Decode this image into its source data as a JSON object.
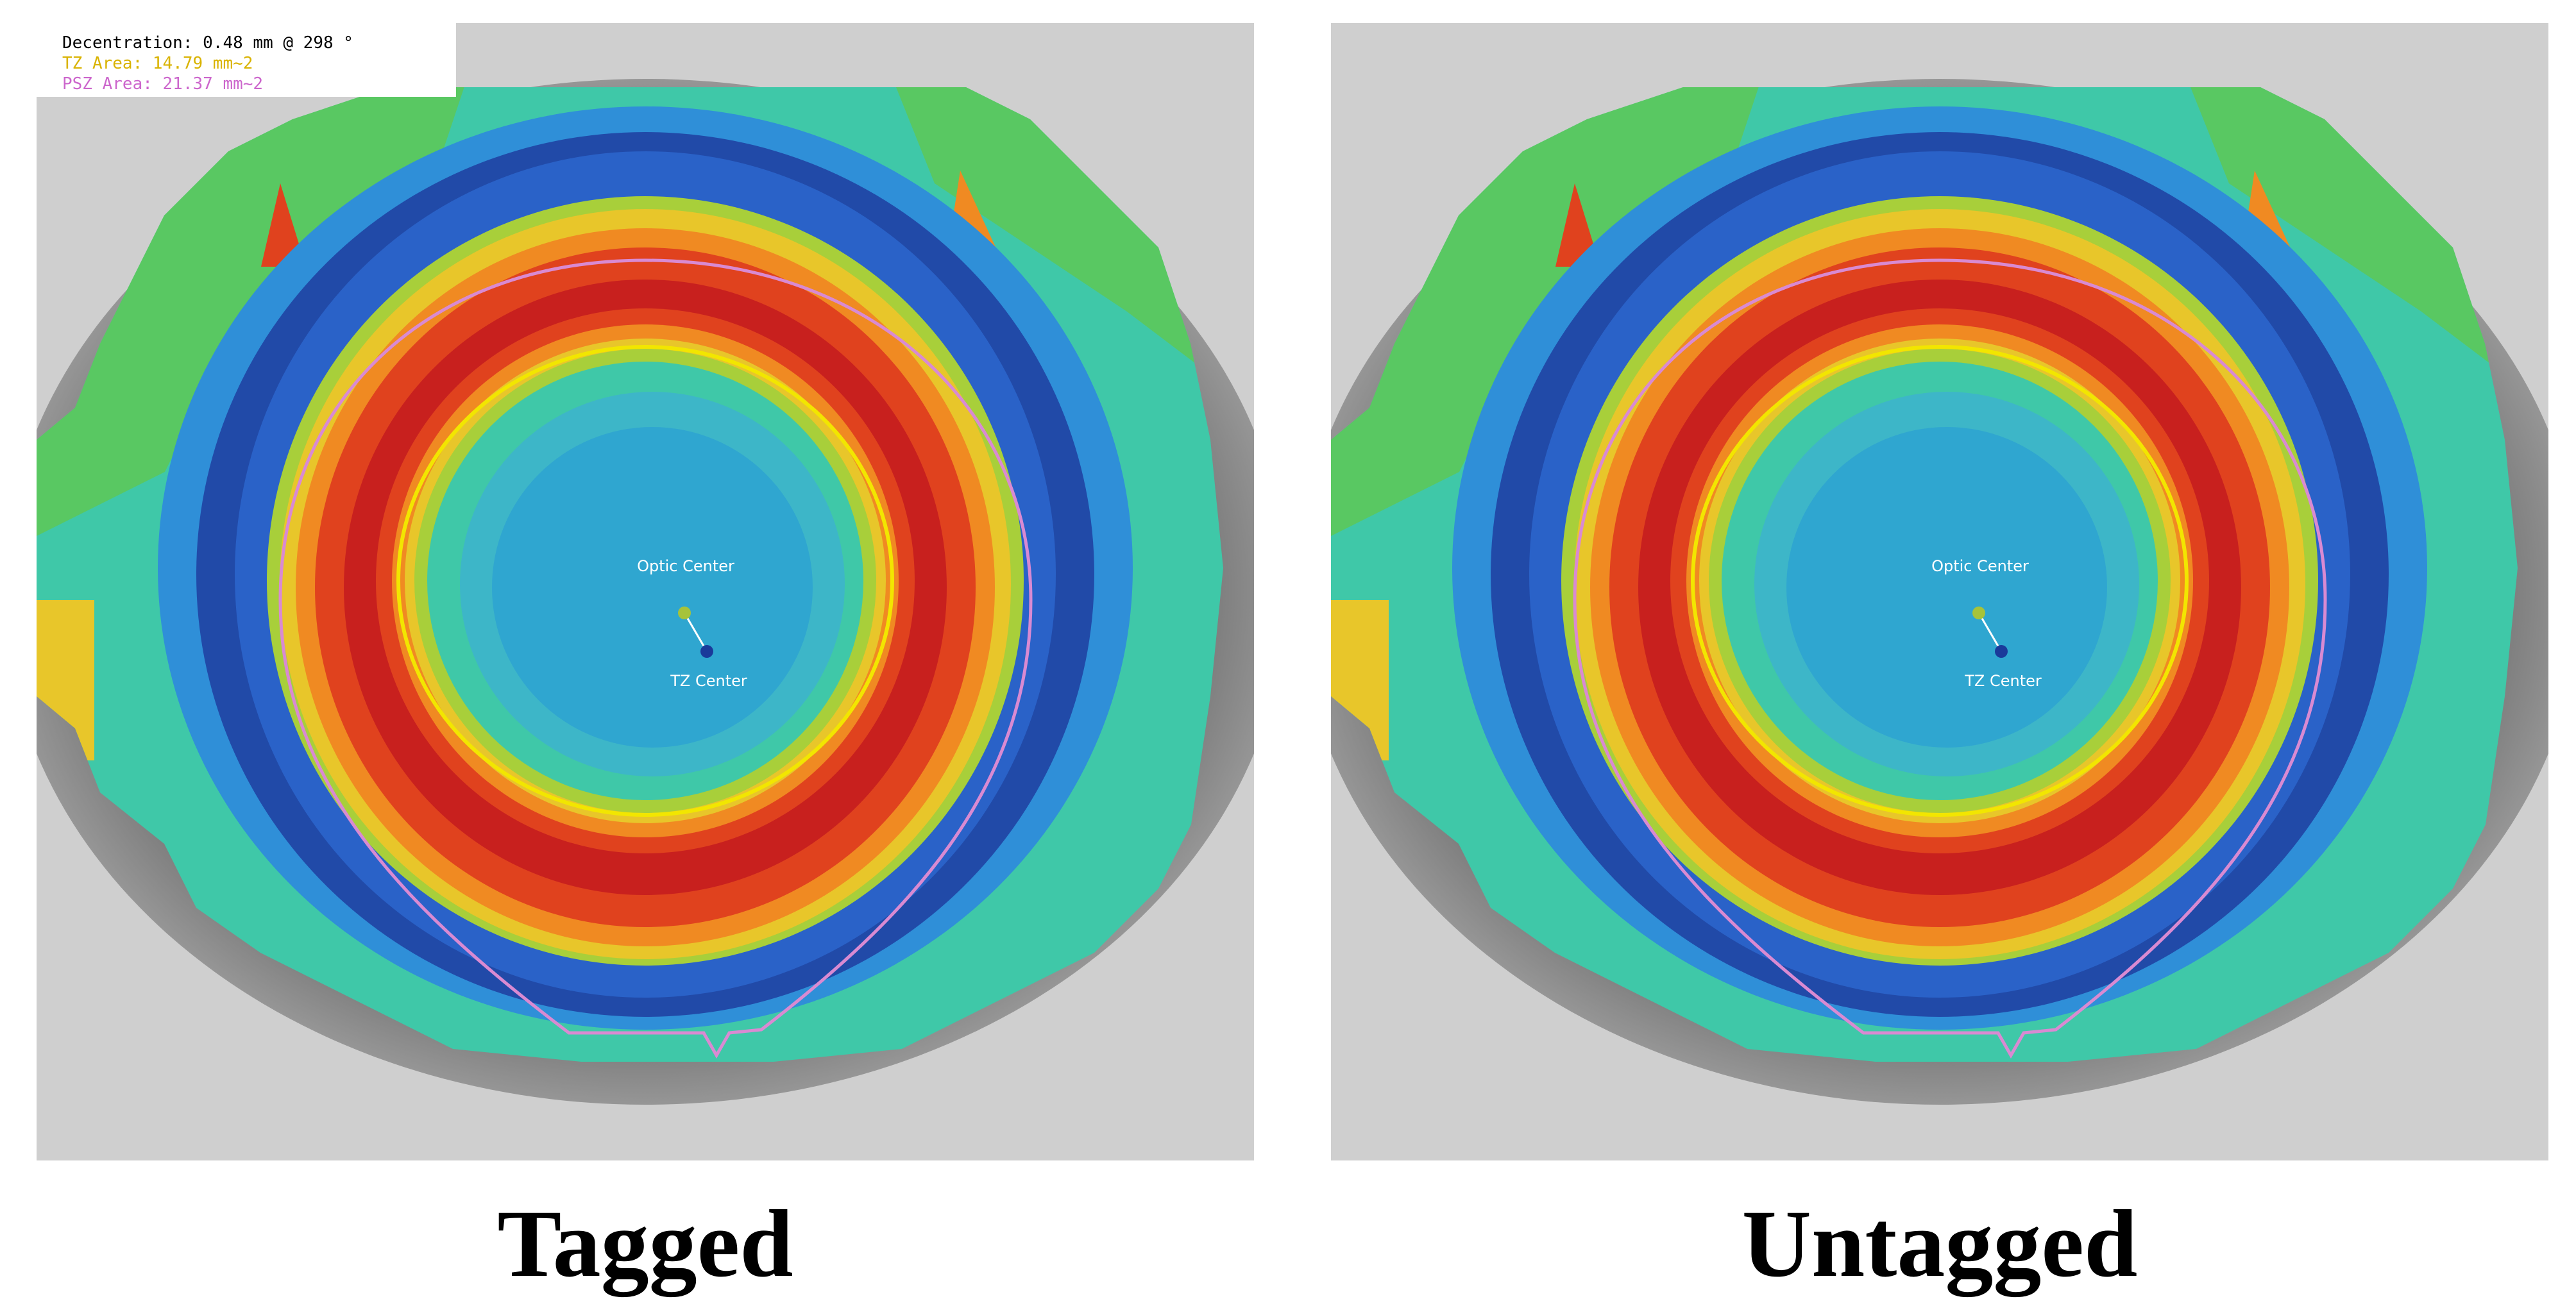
{
  "info": {
    "decentration": "Decentration: 0.48 mm @ 298 °",
    "tz_area": "TZ Area: 14.79 mm~2",
    "psz_area": "PSZ Area: 21.37 mm~2",
    "colors": {
      "decentration": "#000000",
      "tz_area": "#d9b300",
      "psz_area": "#cc66cc"
    }
  },
  "panels": [
    {
      "id": "left",
      "caption": "Tagged",
      "has_info": true,
      "optic_center_label": "Optic Center",
      "tz_center_label": "TZ Center"
    },
    {
      "id": "right",
      "caption": "Untagged",
      "has_info": false,
      "optic_center_label": "Optic Center",
      "tz_center_label": "TZ Center"
    }
  ],
  "colors": {
    "optic_center_dot": "#a6c33a",
    "tz_center_dot": "#1a3a9a",
    "tz_boundary": "#f2e600",
    "psz_boundary": "#d98ad2",
    "map_scale": [
      "#1e3ea0",
      "#2a62c8",
      "#2f8fd8",
      "#3db6c8",
      "#3fc8a8",
      "#5cc85a",
      "#a8cf3a",
      "#e8c62a",
      "#f08a22",
      "#e0421e",
      "#c8201e"
    ]
  }
}
